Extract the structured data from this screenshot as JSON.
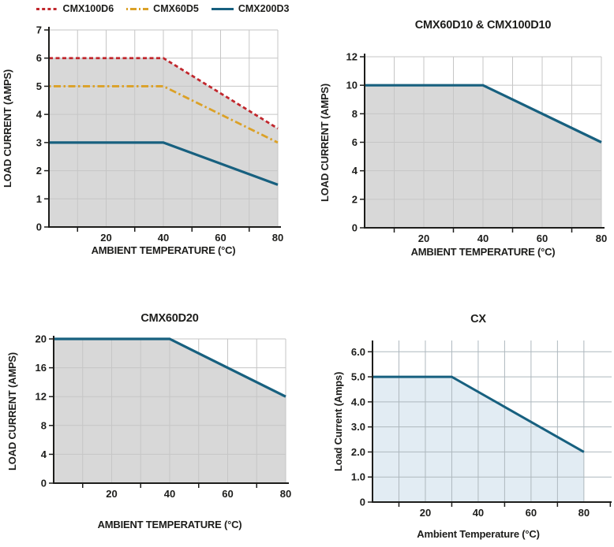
{
  "colors": {
    "text": "#1d1d1b",
    "axis": "#1d1d1b",
    "grey_fill": "#d8d8d8",
    "grey_grid": "#c6c6c6",
    "lightblue_fill": "#e2ecf3",
    "lightblue_grid": "#aeb8be",
    "red": "#c1272d",
    "orange": "#dba127",
    "blue": "#17607f"
  },
  "chart_data": [
    {
      "name": "cmx-family-derating",
      "type": "line",
      "title": "",
      "xlabel": "AMBIENT TEMPERATURE (°C)",
      "ylabel": "LOAD CURRENT (AMPS)",
      "xlim": [
        0,
        80
      ],
      "ylim": [
        0,
        7
      ],
      "xticks": [
        {
          "v": 20,
          "t": "20"
        },
        {
          "v": 40,
          "t": "40"
        },
        {
          "v": 60,
          "t": "60"
        },
        {
          "v": 80,
          "t": "80"
        }
      ],
      "xticks_minor": [
        10,
        30,
        50,
        70
      ],
      "yticks": [
        {
          "v": 0,
          "t": "0"
        },
        {
          "v": 1,
          "t": "1"
        },
        {
          "v": 2,
          "t": "2"
        },
        {
          "v": 3,
          "t": "3"
        },
        {
          "v": 4,
          "t": "4"
        },
        {
          "v": 5,
          "t": "5"
        },
        {
          "v": 6,
          "t": "6"
        },
        {
          "v": 7,
          "t": "7"
        }
      ],
      "grid_x": [
        10,
        20,
        30,
        40,
        50,
        60,
        70,
        80
      ],
      "grid_y": [
        1,
        2,
        3,
        4,
        5,
        6,
        7
      ],
      "fill_under": "CMX100D6",
      "fill_color": "#d8d8d8",
      "grid_color": "#c6c6c6",
      "legend": [
        {
          "label": "CMX100D6",
          "color": "#c1272d",
          "dash": "dashed"
        },
        {
          "label": "CMX60D5",
          "color": "#dba127",
          "dash": "dashdot"
        },
        {
          "label": "CMX200D3",
          "color": "#17607f",
          "dash": "solid"
        }
      ],
      "series": [
        {
          "name": "CMX100D6",
          "color": "#c1272d",
          "dash": "dashed",
          "width": 2.8,
          "points": [
            [
              0,
              6
            ],
            [
              40,
              6
            ],
            [
              80,
              3.5
            ]
          ]
        },
        {
          "name": "CMX60D5",
          "color": "#dba127",
          "dash": "dashdot",
          "width": 2.8,
          "points": [
            [
              0,
              5
            ],
            [
              40,
              5
            ],
            [
              80,
              3
            ]
          ]
        },
        {
          "name": "CMX200D3",
          "color": "#17607f",
          "dash": "solid",
          "width": 3.2,
          "points": [
            [
              0,
              3
            ],
            [
              40,
              3
            ],
            [
              80,
              1.5
            ]
          ]
        }
      ]
    },
    {
      "name": "cmx60d10-cmx100d10-derating",
      "type": "line",
      "title": "CMX60D10 & CMX100D10",
      "xlabel": "AMBIENT TEMPERATURE (°C)",
      "ylabel": "LOAD CURRENT (AMPS)",
      "xlim": [
        0,
        80
      ],
      "ylim": [
        0,
        12
      ],
      "xticks": [
        {
          "v": 20,
          "t": "20"
        },
        {
          "v": 40,
          "t": "40"
        },
        {
          "v": 60,
          "t": "60"
        },
        {
          "v": 80,
          "t": "80"
        }
      ],
      "xticks_minor": [
        10,
        30,
        50,
        70
      ],
      "yticks": [
        {
          "v": 0,
          "t": "0"
        },
        {
          "v": 2,
          "t": "2"
        },
        {
          "v": 4,
          "t": "4"
        },
        {
          "v": 6,
          "t": "6"
        },
        {
          "v": 8,
          "t": "8"
        },
        {
          "v": 10,
          "t": "10"
        },
        {
          "v": 12,
          "t": "12"
        }
      ],
      "grid_x": [
        10,
        20,
        30,
        40,
        50,
        60,
        70,
        80
      ],
      "grid_y": [
        2,
        4,
        6,
        8,
        10,
        12
      ],
      "fill_under": "CMX60D10 & CMX100D10",
      "fill_color": "#d8d8d8",
      "grid_color": "#c6c6c6",
      "series": [
        {
          "name": "CMX60D10 & CMX100D10",
          "color": "#17607f",
          "dash": "solid",
          "width": 3.2,
          "points": [
            [
              0,
              10
            ],
            [
              40,
              10
            ],
            [
              80,
              6
            ]
          ]
        }
      ]
    },
    {
      "name": "cmx60d20-derating",
      "type": "line",
      "title": "CMX60D20",
      "xlabel": "AMBIENT TEMPERATURE (°C)",
      "ylabel": "LOAD CURRENT (AMPS)",
      "xlim": [
        0,
        80
      ],
      "ylim": [
        0,
        20
      ],
      "xticks": [
        {
          "v": 20,
          "t": "20"
        },
        {
          "v": 40,
          "t": "40"
        },
        {
          "v": 60,
          "t": "60"
        },
        {
          "v": 80,
          "t": "80"
        }
      ],
      "xticks_minor": [
        10,
        30,
        50,
        70
      ],
      "yticks": [
        {
          "v": 0,
          "t": "0"
        },
        {
          "v": 4,
          "t": "4"
        },
        {
          "v": 8,
          "t": "8"
        },
        {
          "v": 12,
          "t": "12"
        },
        {
          "v": 16,
          "t": "16"
        },
        {
          "v": 20,
          "t": "20"
        }
      ],
      "grid_x": [
        10,
        20,
        30,
        40,
        50,
        60,
        70,
        80
      ],
      "grid_y": [
        4,
        8,
        12,
        16,
        20
      ],
      "fill_under": "CMX60D20",
      "fill_color": "#d8d8d8",
      "grid_color": "#c6c6c6",
      "series": [
        {
          "name": "CMX60D20",
          "color": "#17607f",
          "dash": "solid",
          "width": 3.2,
          "points": [
            [
              0,
              20
            ],
            [
              40,
              20
            ],
            [
              80,
              12
            ]
          ]
        }
      ]
    },
    {
      "name": "cx-derating",
      "type": "line",
      "title": "CX",
      "xlabel": "Ambient Temperature (°C)",
      "ylabel": "Load Current (Amps)",
      "xlim": [
        0,
        90.5
      ],
      "ylim": [
        0,
        6.45
      ],
      "xticks": [
        {
          "v": 20,
          "t": "20"
        },
        {
          "v": 40,
          "t": "40"
        },
        {
          "v": 60,
          "t": "60"
        },
        {
          "v": 80,
          "t": "80"
        }
      ],
      "xticks_minor": [
        10,
        30,
        50,
        70,
        90
      ],
      "yticks": [
        {
          "v": 0,
          "t": "0"
        },
        {
          "v": 1,
          "t": "1.0"
        },
        {
          "v": 2,
          "t": "2.0"
        },
        {
          "v": 3,
          "t": "3.0"
        },
        {
          "v": 4,
          "t": "4.0"
        },
        {
          "v": 5,
          "t": "5.0"
        },
        {
          "v": 6,
          "t": "6.0"
        }
      ],
      "grid_x": [
        10,
        20,
        30,
        40,
        50,
        60,
        70,
        80
      ],
      "grid_y": [
        1,
        2,
        3,
        4,
        5,
        6
      ],
      "fill_under": "CX",
      "fill_color": "#e2ecf3",
      "grid_color": "#aeb8be",
      "series": [
        {
          "name": "CX",
          "color": "#17607f",
          "dash": "solid",
          "width": 3,
          "points": [
            [
              0,
              5
            ],
            [
              30,
              5
            ],
            [
              80,
              2
            ]
          ]
        }
      ]
    }
  ]
}
